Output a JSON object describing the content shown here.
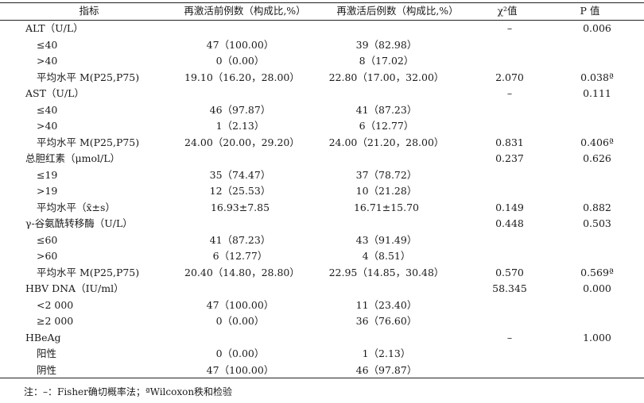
{
  "header": {
    "col0": "指标",
    "col1": "再激活前例数（构成比,%）",
    "col2": "再激活后例数（构成比,%）",
    "col3": "χ²值",
    "col4": "P 值"
  },
  "rows": [
    {
      "label": "ALT（U/L）",
      "sub": false,
      "before": "",
      "after": "",
      "chi": "–",
      "p": "0.006"
    },
    {
      "label": "≤40",
      "sub": true,
      "before": "47（100.00）",
      "after": "39（82.98）",
      "chi": "",
      "p": ""
    },
    {
      "label": ">40",
      "sub": true,
      "before": "0（0.00）",
      "after": "8（17.02）",
      "chi": "",
      "p": ""
    },
    {
      "label": "平均水平 M(P25,P75)",
      "sub": true,
      "before": "19.10（16.20，28.00）",
      "after": "22.80（17.00，32.00）",
      "chi": "2.070",
      "p": "0.038ª"
    },
    {
      "label": "AST（U/L）",
      "sub": false,
      "before": "",
      "after": "",
      "chi": "–",
      "p": "0.111"
    },
    {
      "label": "≤40",
      "sub": true,
      "before": "46（97.87）",
      "after": "41（87.23）",
      "chi": "",
      "p": ""
    },
    {
      "label": ">40",
      "sub": true,
      "before": "1（2.13）",
      "after": "6（12.77）",
      "chi": "",
      "p": ""
    },
    {
      "label": "平均水平 M(P25,P75)",
      "sub": true,
      "before": "24.00（20.00，29.20）",
      "after": "24.00（21.20，28.00）",
      "chi": "0.831",
      "p": "0.406ª"
    },
    {
      "label": "总胆红素（μmol/L）",
      "sub": false,
      "before": "",
      "after": "",
      "chi": "0.237",
      "p": "0.626"
    },
    {
      "label": "≤19",
      "sub": true,
      "before": "35（74.47）",
      "after": "37（78.72）",
      "chi": "",
      "p": ""
    },
    {
      "label": ">19",
      "sub": true,
      "before": "12（25.53）",
      "after": "10（21.28）",
      "chi": "",
      "p": ""
    },
    {
      "label": "平均水平（x̄±s）",
      "sub": true,
      "before": "16.93±7.85",
      "after": "16.71±15.70",
      "chi": "0.149",
      "p": "0.882"
    },
    {
      "label": "γ-谷氨酰转移酶（U/L）",
      "sub": false,
      "before": "",
      "after": "",
      "chi": "0.448",
      "p": "0.503"
    },
    {
      "label": "≤60",
      "sub": true,
      "before": "41（87.23）",
      "after": "43（91.49）",
      "chi": "",
      "p": ""
    },
    {
      "label": ">60",
      "sub": true,
      "before": "6（12.77）",
      "after": "4（8.51）",
      "chi": "",
      "p": ""
    },
    {
      "label": "平均水平 M(P25,P75)",
      "sub": true,
      "before": "20.40（14.80，28.80）",
      "after": "22.95（14.85，30.48）",
      "chi": "0.570",
      "p": "0.569ª"
    },
    {
      "label": "HBV DNA（IU/ml）",
      "sub": false,
      "before": "",
      "after": "",
      "chi": "58.345",
      "p": "0.000"
    },
    {
      "label": "<2 000",
      "sub": true,
      "before": "47（100.00）",
      "after": "11（23.40）",
      "chi": "",
      "p": ""
    },
    {
      "label": "≥2 000",
      "sub": true,
      "before": "0（0.00）",
      "after": "36（76.60）",
      "chi": "",
      "p": ""
    },
    {
      "label": "HBeAg",
      "sub": false,
      "before": "",
      "after": "",
      "chi": "–",
      "p": "1.000"
    },
    {
      "label": "阳性",
      "sub": true,
      "before": "0（0.00）",
      "after": "1（2.13）",
      "chi": "",
      "p": ""
    },
    {
      "label": "阴性",
      "sub": true,
      "before": "47（100.00）",
      "after": "46（97.87）",
      "chi": "",
      "p": ""
    }
  ],
  "note": "注：–：Fisher确切概率法；ªWilcoxon秩和检验"
}
